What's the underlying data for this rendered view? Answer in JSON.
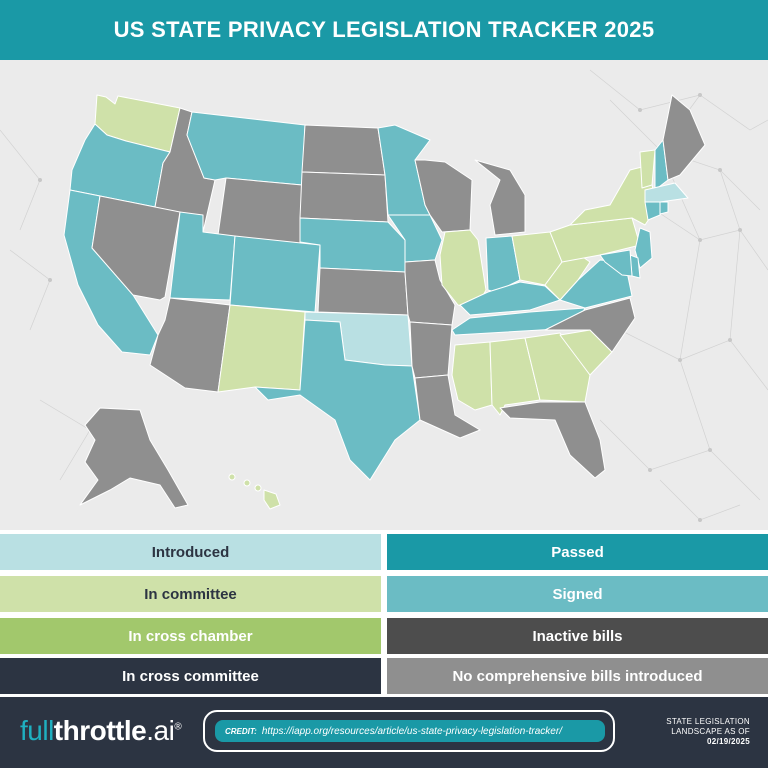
{
  "header": {
    "title": "US STATE PRIVACY LEGISLATION TRACKER 2025"
  },
  "colors": {
    "introduced": "#b9e0e3",
    "in_committee": "#cfe1a9",
    "in_cross_chamber": "#a2c86c",
    "in_cross_committee": "#2c3442",
    "passed": "#1a99a6",
    "signed": "#6bbcc4",
    "inactive": "#4d4d4d",
    "no_bills": "#8f8f8f",
    "map_background": "#ebebeb",
    "header": "#1a99a6"
  },
  "legend": {
    "items": [
      {
        "key": "introduced",
        "label": "Introduced",
        "color": "#b9e0e3",
        "text_color": "#2c3442"
      },
      {
        "key": "passed",
        "label": "Passed",
        "color": "#1a99a6",
        "text_color": "#ffffff"
      },
      {
        "key": "in_committee",
        "label": "In committee",
        "color": "#cfe1a9",
        "text_color": "#2c3442"
      },
      {
        "key": "signed",
        "label": "Signed",
        "color": "#6bbcc4",
        "text_color": "#ffffff"
      },
      {
        "key": "in_cross_chamber",
        "label": "In cross chamber",
        "color": "#a2c86c",
        "text_color": "#ffffff"
      },
      {
        "key": "inactive",
        "label": "Inactive bills",
        "color": "#4d4d4d",
        "text_color": "#ffffff"
      },
      {
        "key": "in_cross_committee",
        "label": "In cross committee",
        "color": "#2c3442",
        "text_color": "#ffffff"
      },
      {
        "key": "no_bills",
        "label": "No comprehensive bills introduced",
        "color": "#8f8f8f",
        "text_color": "#ffffff"
      }
    ]
  },
  "states": {
    "signed": [
      "OR",
      "CA",
      "MT",
      "UT",
      "CO",
      "NE",
      "TX",
      "MN",
      "IA",
      "IN",
      "KY",
      "TN",
      "VA",
      "DE",
      "NJ",
      "MD",
      "NH",
      "CT",
      "RI"
    ],
    "introduced": [
      "OK",
      "MA"
    ],
    "in_committee": [
      "WA",
      "NM",
      "IL",
      "MS",
      "AL",
      "GA",
      "SC",
      "OH",
      "WV",
      "PA",
      "NY",
      "VT",
      "HI"
    ],
    "no_bills": [
      "ID",
      "NV",
      "WY",
      "AZ",
      "ND",
      "SD",
      "KS",
      "MO",
      "AR",
      "LA",
      "WI",
      "MI",
      "NC",
      "FL",
      "ME",
      "AK"
    ]
  },
  "footer": {
    "logo_full": "full",
    "logo_throttle": "throttle",
    "logo_ai": ".ai",
    "logo_reg": "®",
    "credit_label": "CREDIT:",
    "credit_url": "https://iapp.org/resources/article/us-state-privacy-legislation-tracker/",
    "date_line1": "STATE LEGISLATION",
    "date_line2": "LANDSCAPE AS OF",
    "date_value": "02/19/2025"
  }
}
